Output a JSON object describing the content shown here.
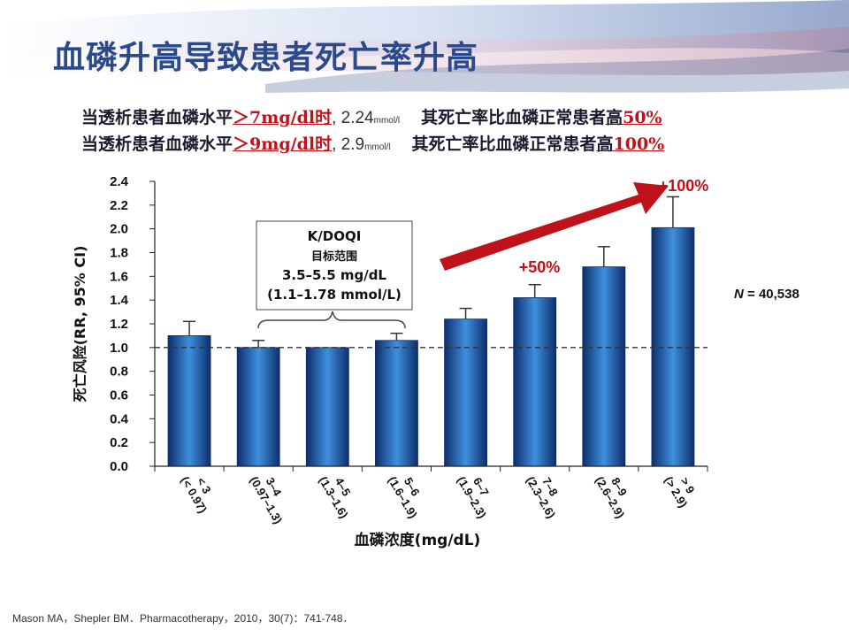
{
  "title": "血磷升高导致患者死亡率升高",
  "statements": [
    {
      "prefix": "当透析患者血磷水平",
      "threshold": "＞7mg/dl时",
      "sep": ",",
      "mmol": "2.24",
      "mmol_unit": "mmol/l",
      "clause": "其死亡率比血磷正常患者",
      "gao": "高",
      "pct": "50%"
    },
    {
      "prefix": "当透析患者血磷水平",
      "threshold": "＞9mg/dl时",
      "sep": ",",
      "mmol": "2.9",
      "mmol_unit": "mmol/l",
      "clause": "其死亡率比血磷正常患者",
      "gao": "高",
      "pct": "100%"
    }
  ],
  "reference": "Mason MA，Shepler BM．Pharmacotherapy，2010，30(7)：741-748．",
  "chart_data": {
    "type": "bar",
    "ylabel": "死亡风险(RR, 95% CI)",
    "xlabel": "血磷浓度(mg/dL)",
    "ylim": [
      0,
      2.4
    ],
    "yticks": [
      "0.0",
      "0.2",
      "0.4",
      "0.6",
      "0.8",
      "1.0",
      "1.2",
      "1.4",
      "1.6",
      "1.8",
      "2.0",
      "2.2",
      "2.4"
    ],
    "categories": [
      {
        "line1": "< 3",
        "line2": "(< 0.97)"
      },
      {
        "line1": "3–4",
        "line2": "(0.97–1.3)"
      },
      {
        "line1": "4–5",
        "line2": "(1.3–1.6)"
      },
      {
        "line1": "5–6",
        "line2": "(1.6–1.9)"
      },
      {
        "line1": "6–7",
        "line2": "(1.9–2.3)"
      },
      {
        "line1": "7–8",
        "line2": "(2.3–2.6)"
      },
      {
        "line1": "8–9",
        "line2": "(2.6–2.9)"
      },
      {
        "line1": "> 9",
        "line2": "(> 2.9)"
      }
    ],
    "values": [
      1.1,
      1.0,
      1.0,
      1.06,
      1.24,
      1.42,
      1.68,
      2.01
    ],
    "ci_upper": [
      1.22,
      1.06,
      1.0,
      1.12,
      1.33,
      1.53,
      1.85,
      2.27
    ],
    "reference_line": 1.0,
    "annotations": {
      "kdoqi_title": "K/DOQI",
      "kdoqi_sub": "目标范围",
      "kdoqi_mg": "3.5–5.5 mg/dL",
      "kdoqi_mmol": "(1.1–1.78 mmol/L)",
      "plus50": "+50%",
      "plus100": "+100%",
      "n_label": "N",
      "n_value": "= 40,538"
    },
    "colors": {
      "bar_dark": "#0d2f6a",
      "bar_light": "#3f8fe0",
      "arrow": "#c0121a",
      "axis": "#222222",
      "highlight": "#8b8bc8"
    }
  }
}
